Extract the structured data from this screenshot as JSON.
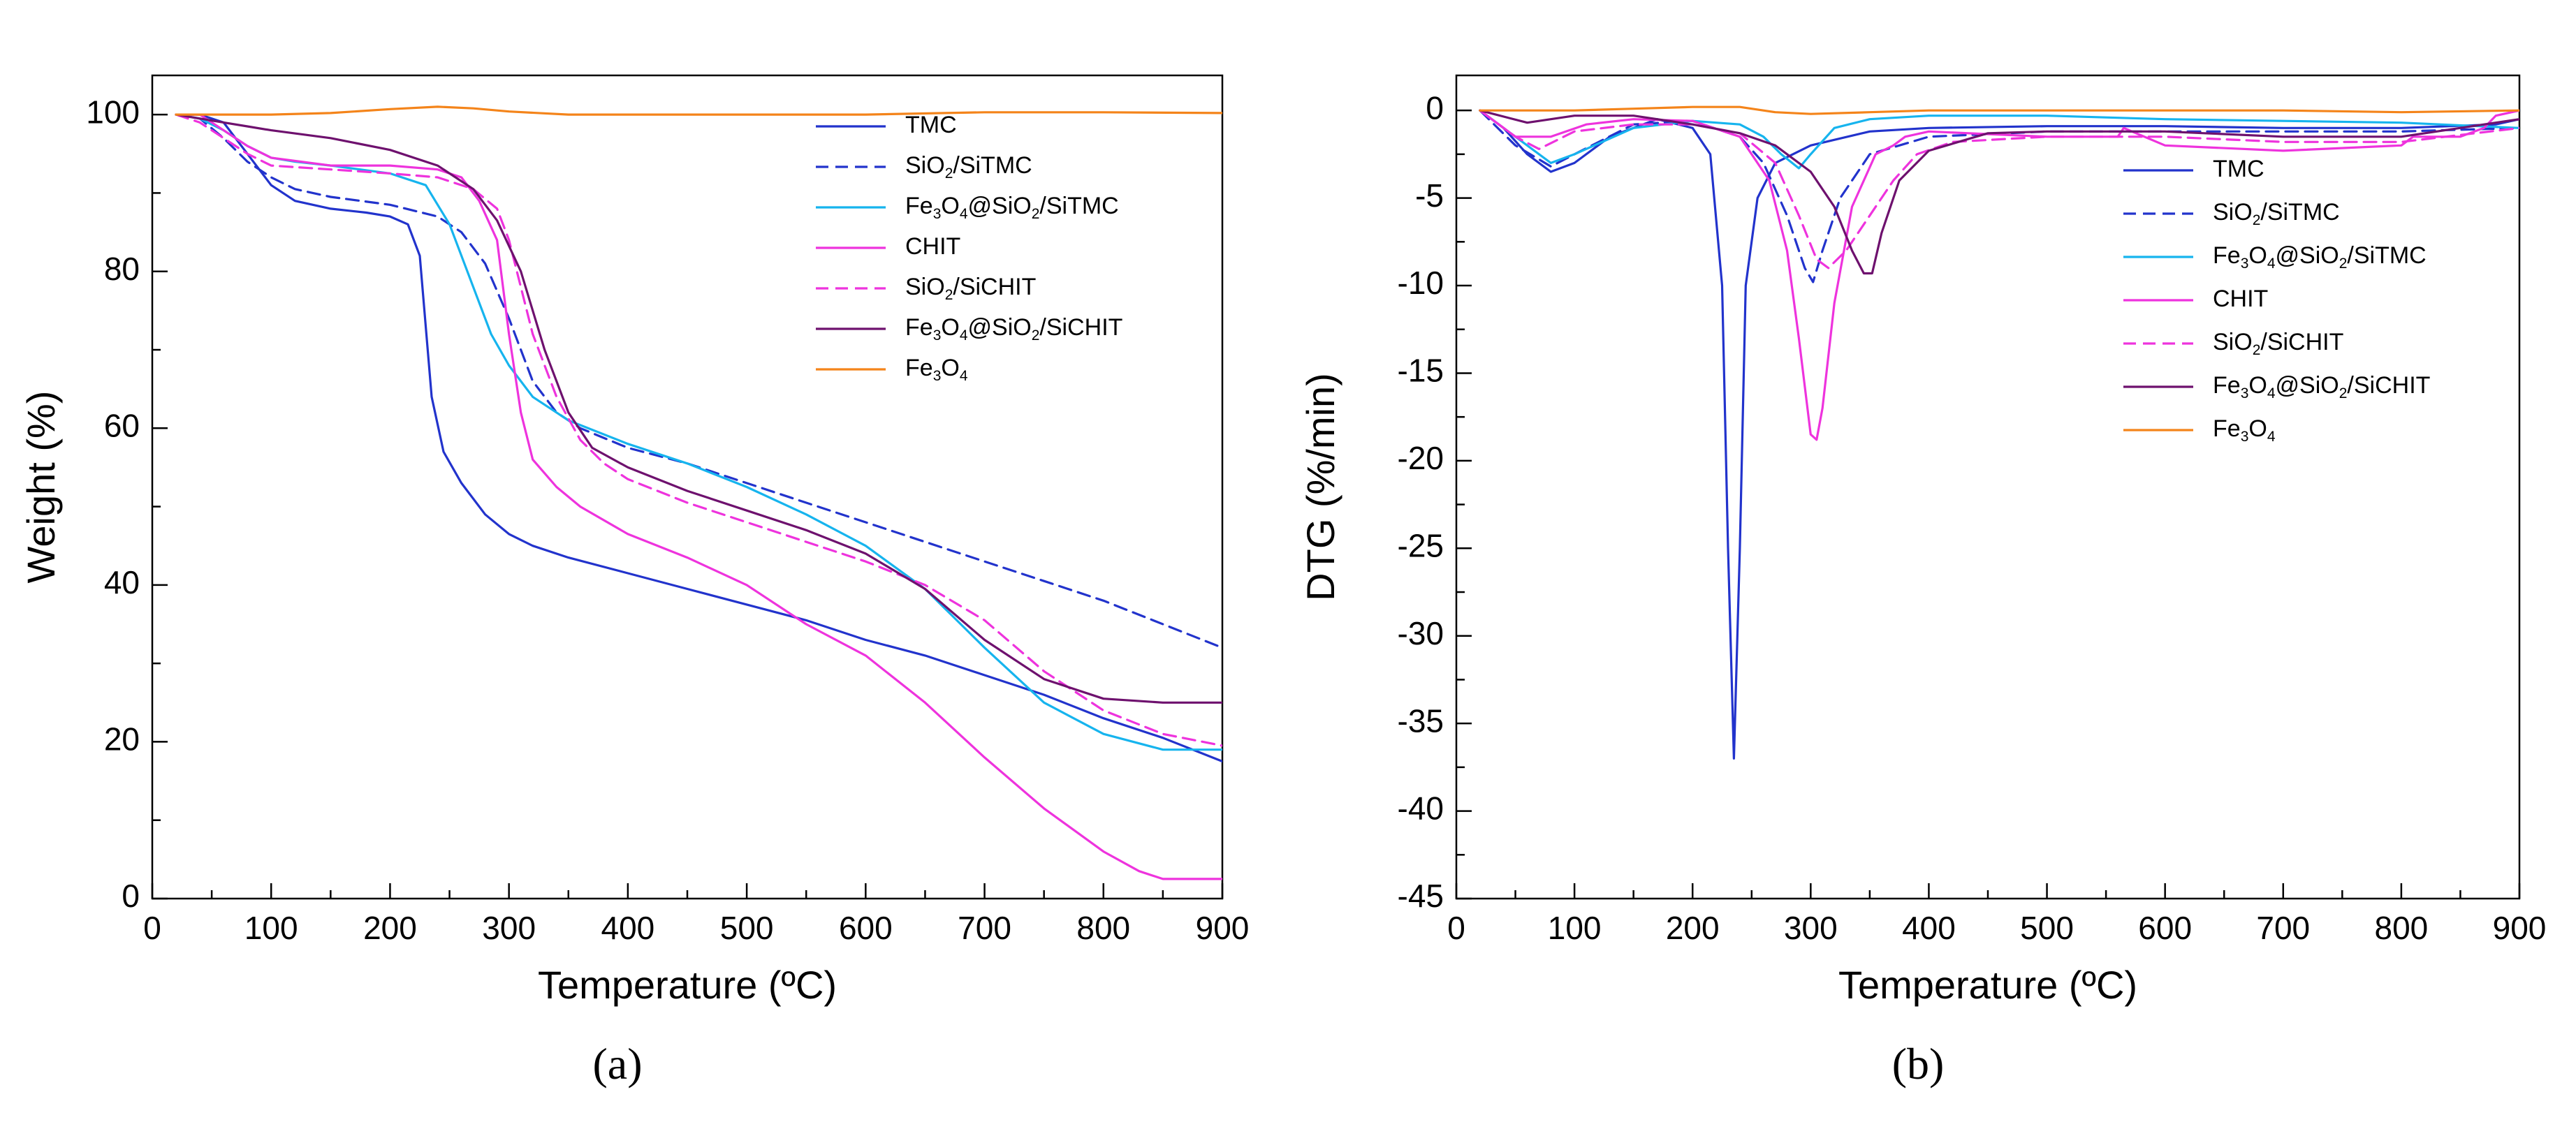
{
  "chart_data": [
    {
      "type": "line",
      "panel_label": "(a)",
      "xlabel": "Temperature (ºC)",
      "ylabel": "Weight (%)",
      "xlim": [
        0,
        900
      ],
      "ylim": [
        0,
        105
      ],
      "xticks": [
        0,
        100,
        200,
        300,
        400,
        500,
        600,
        700,
        800,
        900
      ],
      "yticks": [
        0,
        20,
        40,
        60,
        80,
        100
      ],
      "legend_position": "top-right",
      "series": [
        {
          "name": "TMC",
          "label": [
            "TMC"
          ],
          "color": "#2233cc",
          "dash": false,
          "x": [
            20,
            40,
            60,
            80,
            100,
            120,
            150,
            180,
            200,
            215,
            225,
            235,
            245,
            260,
            280,
            300,
            320,
            350,
            400,
            450,
            500,
            550,
            600,
            650,
            700,
            750,
            800,
            850,
            900
          ],
          "y": [
            100,
            100,
            99,
            95,
            91,
            89,
            88,
            87.5,
            87,
            86,
            82,
            64,
            57,
            53,
            49,
            46.5,
            45,
            43.5,
            41.5,
            39.5,
            37.5,
            35.5,
            33,
            31,
            28.5,
            26,
            23,
            20.5,
            17.5
          ]
        },
        {
          "name": "SiO2/SiTMC",
          "label": [
            "SiO",
            "2",
            "/SiTMC"
          ],
          "color": "#2233cc",
          "dash": true,
          "x": [
            20,
            40,
            60,
            80,
            100,
            120,
            150,
            200,
            240,
            260,
            280,
            300,
            310,
            320,
            340,
            360,
            400,
            450,
            500,
            550,
            600,
            650,
            700,
            750,
            800,
            850,
            900
          ],
          "y": [
            100,
            99.5,
            97,
            94,
            92,
            90.5,
            89.5,
            88.5,
            87,
            85,
            81,
            74,
            70,
            66,
            62,
            60,
            57.5,
            55.5,
            53,
            50.5,
            48,
            45.5,
            43,
            40.5,
            38,
            35,
            32
          ]
        },
        {
          "name": "Fe3O4@SiO2/SiTMC",
          "label": [
            "Fe",
            "3",
            "O",
            "4",
            "@SiO",
            "2",
            "/SiTMC"
          ],
          "color": "#16b4ee",
          "dash": false,
          "x": [
            20,
            40,
            60,
            80,
            100,
            120,
            150,
            200,
            230,
            250,
            270,
            285,
            300,
            320,
            350,
            400,
            450,
            500,
            550,
            600,
            650,
            700,
            750,
            800,
            850,
            900
          ],
          "y": [
            100,
            99.5,
            98,
            96,
            94.5,
            94,
            93.5,
            92.5,
            91,
            86,
            78,
            72,
            68,
            64,
            61,
            58,
            55.5,
            52.5,
            49,
            45,
            39.5,
            32,
            25,
            21,
            19,
            19
          ]
        },
        {
          "name": "CHIT",
          "label": [
            "CHIT"
          ],
          "color": "#ee33dd",
          "dash": false,
          "x": [
            20,
            40,
            60,
            80,
            100,
            150,
            200,
            240,
            260,
            275,
            290,
            300,
            310,
            320,
            340,
            360,
            400,
            450,
            500,
            550,
            600,
            650,
            700,
            750,
            800,
            830,
            850,
            870,
            900
          ],
          "y": [
            100,
            100,
            98,
            96,
            94.5,
            93.5,
            93.5,
            93,
            92,
            89,
            84,
            72,
            62,
            56,
            52.5,
            50,
            46.5,
            43.5,
            40,
            35,
            31,
            25,
            18,
            11.5,
            6,
            3.5,
            2.5,
            2.5,
            2.5
          ]
        },
        {
          "name": "SiO2/SiCHIT",
          "label": [
            "SiO",
            "2",
            "/SiCHIT"
          ],
          "color": "#ee33dd",
          "dash": true,
          "x": [
            20,
            40,
            60,
            80,
            100,
            150,
            200,
            240,
            270,
            290,
            300,
            310,
            320,
            340,
            360,
            380,
            400,
            450,
            500,
            550,
            600,
            650,
            700,
            750,
            800,
            850,
            900
          ],
          "y": [
            100,
            99,
            97,
            95,
            93.5,
            93,
            92.5,
            92,
            90.5,
            88,
            84,
            78,
            72,
            64,
            58.5,
            55.5,
            53.5,
            50.5,
            48,
            45.5,
            43,
            40,
            35.5,
            29,
            24,
            21,
            19.5
          ]
        },
        {
          "name": "Fe3O4@SiO2/SiCHIT",
          "label": [
            "Fe",
            "3",
            "O",
            "4",
            "@SiO",
            "2",
            "/SiCHIT"
          ],
          "color": "#6e116e",
          "dash": false,
          "x": [
            20,
            40,
            60,
            80,
            100,
            150,
            200,
            240,
            270,
            290,
            310,
            330,
            350,
            370,
            400,
            450,
            500,
            550,
            600,
            650,
            700,
            750,
            800,
            850,
            900
          ],
          "y": [
            100,
            99.5,
            99,
            98.5,
            98,
            97,
            95.5,
            93.5,
            90.5,
            86.5,
            80,
            70,
            62,
            57.5,
            55,
            52,
            49.5,
            47,
            44,
            39.5,
            33,
            28,
            25.5,
            25,
            25
          ]
        },
        {
          "name": "Fe3O4",
          "label": [
            "Fe",
            "3",
            "O",
            "4"
          ],
          "color": "#f4841a",
          "dash": false,
          "x": [
            20,
            100,
            150,
            200,
            240,
            270,
            300,
            350,
            400,
            500,
            600,
            700,
            800,
            900
          ],
          "y": [
            100,
            100,
            100.2,
            100.7,
            101,
            100.8,
            100.4,
            100,
            100,
            100,
            100,
            100.3,
            100.3,
            100.2
          ]
        }
      ]
    },
    {
      "type": "line",
      "panel_label": "(b)",
      "xlabel": "Temperature (ºC)",
      "ylabel": "DTG (%/min)",
      "xlim": [
        0,
        900
      ],
      "ylim": [
        -45,
        2
      ],
      "xticks": [
        0,
        100,
        200,
        300,
        400,
        500,
        600,
        700,
        800,
        900
      ],
      "yticks": [
        0,
        -5,
        -10,
        -15,
        -20,
        -25,
        -30,
        -35,
        -40,
        -45
      ],
      "legend_position": "top-right",
      "series": [
        {
          "name": "TMC",
          "label": [
            "TMC"
          ],
          "color": "#2233cc",
          "dash": false,
          "x": [
            20,
            40,
            60,
            80,
            100,
            130,
            170,
            200,
            215,
            225,
            230,
            235,
            240,
            245,
            255,
            270,
            300,
            350,
            400,
            500,
            600,
            700,
            800,
            880,
            900
          ],
          "y": [
            0,
            -1,
            -2.5,
            -3.5,
            -3,
            -1.5,
            -0.5,
            -1,
            -2.5,
            -10,
            -25,
            -37,
            -25,
            -10,
            -5,
            -3,
            -2,
            -1.2,
            -1,
            -0.9,
            -0.9,
            -1,
            -1,
            -0.8,
            -0.5
          ]
        },
        {
          "name": "SiO2/SiTMC",
          "label": [
            "SiO",
            "2",
            "/SiTMC"
          ],
          "color": "#2233cc",
          "dash": true,
          "x": [
            20,
            50,
            80,
            100,
            150,
            200,
            240,
            260,
            280,
            295,
            302,
            310,
            325,
            350,
            400,
            500,
            600,
            700,
            800,
            900
          ],
          "y": [
            0,
            -2,
            -3.2,
            -2.5,
            -0.8,
            -0.6,
            -1.5,
            -3,
            -6,
            -9,
            -9.8,
            -8,
            -5,
            -2.5,
            -1.5,
            -1.2,
            -1.2,
            -1.2,
            -1.2,
            -1
          ]
        },
        {
          "name": "Fe3O4@SiO2/SiTMC",
          "label": [
            "Fe",
            "3",
            "O",
            "4",
            "@SiO",
            "2",
            "/SiTMC"
          ],
          "color": "#16b4ee",
          "dash": false,
          "x": [
            20,
            50,
            80,
            100,
            150,
            200,
            240,
            260,
            275,
            290,
            300,
            320,
            350,
            400,
            500,
            600,
            700,
            800,
            900
          ],
          "y": [
            0,
            -1.5,
            -3,
            -2.5,
            -1,
            -0.6,
            -0.8,
            -1.5,
            -2.5,
            -3.3,
            -2.5,
            -1,
            -0.5,
            -0.3,
            -0.3,
            -0.5,
            -0.6,
            -0.7,
            -1
          ]
        },
        {
          "name": "CHIT",
          "label": [
            "CHIT"
          ],
          "color": "#ee33dd",
          "dash": false,
          "x": [
            20,
            50,
            80,
            110,
            150,
            200,
            240,
            265,
            280,
            290,
            300,
            305,
            310,
            320,
            335,
            355,
            370,
            380,
            400,
            500,
            560,
            565,
            600,
            700,
            800,
            810,
            850,
            870,
            880,
            900
          ],
          "y": [
            0,
            -1.5,
            -1.5,
            -0.8,
            -0.5,
            -0.6,
            -1.5,
            -4,
            -8,
            -13,
            -18.5,
            -18.8,
            -17,
            -11,
            -5.5,
            -2.5,
            -2,
            -1.5,
            -1.2,
            -1.5,
            -1.5,
            -1,
            -2,
            -2.3,
            -2,
            -1.5,
            -1.5,
            -1,
            -0.3,
            0
          ]
        },
        {
          "name": "SiO2/SiCHIT",
          "label": [
            "SiO",
            "2",
            "/SiCHIT"
          ],
          "color": "#ee33dd",
          "dash": true,
          "x": [
            20,
            50,
            70,
            100,
            150,
            200,
            240,
            270,
            290,
            305,
            315,
            330,
            350,
            370,
            390,
            420,
            500,
            600,
            700,
            800,
            900
          ],
          "y": [
            0,
            -1.5,
            -2.2,
            -1.2,
            -0.8,
            -0.8,
            -1.3,
            -3,
            -6,
            -8.5,
            -9,
            -8,
            -6,
            -4,
            -2.5,
            -1.8,
            -1.5,
            -1.5,
            -1.8,
            -1.8,
            -1
          ]
        },
        {
          "name": "Fe3O4@SiO2/SiCHIT",
          "label": [
            "Fe",
            "3",
            "O",
            "4",
            "@SiO",
            "2",
            "/SiCHIT"
          ],
          "color": "#6e116e",
          "dash": false,
          "x": [
            20,
            60,
            100,
            150,
            200,
            240,
            270,
            300,
            320,
            335,
            345,
            352,
            360,
            375,
            400,
            450,
            500,
            600,
            700,
            800,
            900
          ],
          "y": [
            0,
            -0.7,
            -0.3,
            -0.3,
            -0.8,
            -1.3,
            -2,
            -3.5,
            -5.5,
            -8,
            -9.3,
            -9.3,
            -7,
            -4,
            -2.3,
            -1.3,
            -1.2,
            -1.2,
            -1.5,
            -1.5,
            -0.5
          ]
        },
        {
          "name": "Fe3O4",
          "label": [
            "Fe",
            "3",
            "O",
            "4"
          ],
          "color": "#f4841a",
          "dash": false,
          "x": [
            20,
            100,
            150,
            200,
            240,
            270,
            300,
            350,
            400,
            500,
            600,
            700,
            800,
            900
          ],
          "y": [
            0,
            0,
            0.1,
            0.2,
            0.2,
            -0.1,
            -0.2,
            -0.1,
            0,
            0,
            0,
            0,
            -0.1,
            0
          ]
        }
      ]
    }
  ]
}
